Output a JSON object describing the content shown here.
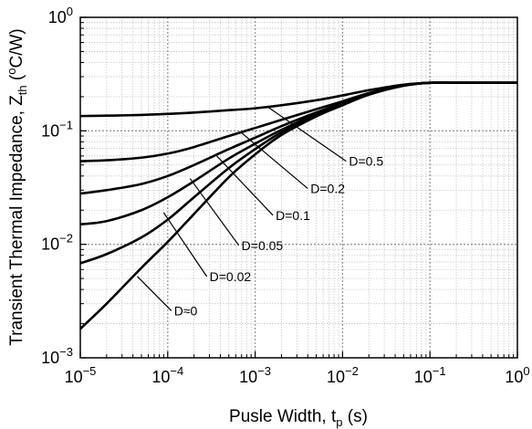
{
  "chart_data": {
    "type": "line",
    "xlabel": {
      "main": "Pusle Width, t",
      "sub": "p",
      "tail": " (s)"
    },
    "ylabel": {
      "main": "Transient Thermal Impedance, Z",
      "sub": "th",
      "tail": " (",
      "sup": "o",
      "tail2": "C/W)"
    },
    "xscale": "log",
    "yscale": "log",
    "xlim": [
      1e-05,
      1
    ],
    "ylim": [
      0.001,
      1
    ],
    "grid": true,
    "x_ticks": [
      {
        "base": "10",
        "exp": "−5"
      },
      {
        "base": "10",
        "exp": "−4"
      },
      {
        "base": "10",
        "exp": "−3"
      },
      {
        "base": "10",
        "exp": "−2"
      },
      {
        "base": "10",
        "exp": "−1"
      },
      {
        "base": "10",
        "exp": "0"
      }
    ],
    "y_ticks": [
      {
        "base": "10",
        "exp": "−3"
      },
      {
        "base": "10",
        "exp": "−2"
      },
      {
        "base": "10",
        "exp": "−1"
      },
      {
        "base": "10",
        "exp": "0"
      }
    ],
    "x": [
      1e-05,
      2e-05,
      5e-05,
      0.0001,
      0.0002,
      0.0005,
      0.001,
      0.002,
      0.005,
      0.01,
      0.02,
      0.05,
      0.1,
      0.2,
      0.5,
      1
    ],
    "series": [
      {
        "name": "D=0.5",
        "values": [
          0.135,
          0.136,
          0.138,
          0.141,
          0.145,
          0.152,
          0.158,
          0.168,
          0.186,
          0.205,
          0.228,
          0.255,
          0.265,
          0.265,
          0.265,
          0.265
        ]
      },
      {
        "name": "D=0.2",
        "values": [
          0.054,
          0.055,
          0.058,
          0.063,
          0.072,
          0.09,
          0.106,
          0.125,
          0.155,
          0.182,
          0.215,
          0.252,
          0.265,
          0.265,
          0.265,
          0.265
        ]
      },
      {
        "name": "D=0.1",
        "values": [
          0.028,
          0.03,
          0.034,
          0.04,
          0.05,
          0.069,
          0.087,
          0.11,
          0.145,
          0.175,
          0.212,
          0.251,
          0.265,
          0.265,
          0.265,
          0.265
        ]
      },
      {
        "name": "D=0.05",
        "values": [
          0.015,
          0.016,
          0.02,
          0.026,
          0.036,
          0.057,
          0.077,
          0.102,
          0.14,
          0.172,
          0.21,
          0.25,
          0.265,
          0.265,
          0.265,
          0.265
        ]
      },
      {
        "name": "D=0.02",
        "values": [
          0.0068,
          0.0082,
          0.0115,
          0.0165,
          0.026,
          0.047,
          0.069,
          0.097,
          0.137,
          0.17,
          0.209,
          0.25,
          0.265,
          0.265,
          0.265,
          0.265
        ]
      },
      {
        "name": "D≈0",
        "values": [
          0.0018,
          0.003,
          0.0062,
          0.0105,
          0.0185,
          0.039,
          0.062,
          0.092,
          0.134,
          0.168,
          0.208,
          0.25,
          0.265,
          0.265,
          0.265,
          0.265
        ]
      }
    ],
    "annotations": [
      {
        "label": "D=0.5",
        "x_from": 0.0014,
        "y_from": 0.162,
        "x_to": 0.011,
        "y_to": 0.054
      },
      {
        "label": "D=0.2",
        "x_from": 0.0007,
        "y_from": 0.096,
        "x_to": 0.004,
        "y_to": 0.031
      },
      {
        "label": "D=0.1",
        "x_from": 0.00035,
        "y_from": 0.062,
        "x_to": 0.0016,
        "y_to": 0.018
      },
      {
        "label": "D=0.05",
        "x_from": 0.00018,
        "y_from": 0.038,
        "x_to": 0.00065,
        "y_to": 0.0098
      },
      {
        "label": "D=0.02",
        "x_from": 9e-05,
        "y_from": 0.019,
        "x_to": 0.00028,
        "y_to": 0.0052
      },
      {
        "label": "D≈0",
        "x_from": 4.5e-05,
        "y_from": 0.0052,
        "x_to": 0.00011,
        "y_to": 0.0026
      }
    ]
  }
}
